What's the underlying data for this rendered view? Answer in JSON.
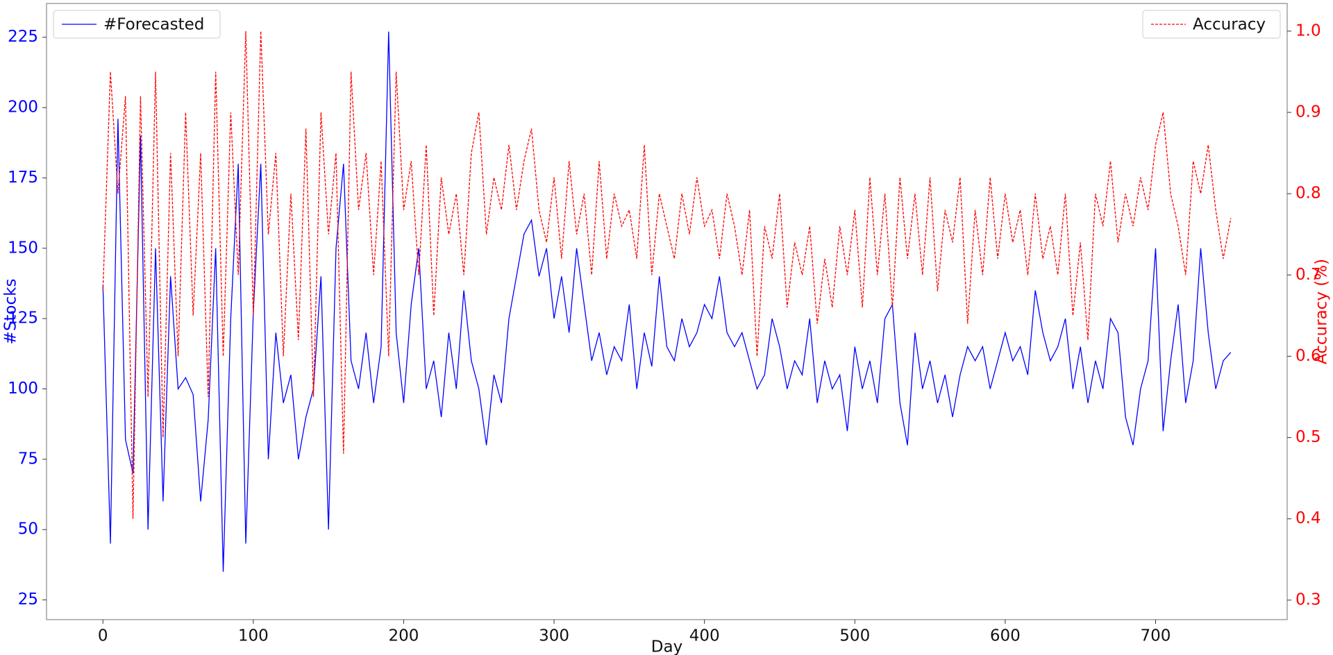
{
  "chart_data": {
    "type": "line",
    "xlabel": "Day",
    "ylabel": "#Stocks",
    "y2label": "Accuracy (%)",
    "x": [
      0,
      5,
      10,
      15,
      20,
      25,
      30,
      35,
      40,
      45,
      50,
      55,
      60,
      65,
      70,
      75,
      80,
      85,
      90,
      95,
      100,
      105,
      110,
      115,
      120,
      125,
      130,
      135,
      140,
      145,
      150,
      155,
      160,
      165,
      170,
      175,
      180,
      185,
      190,
      195,
      200,
      205,
      210,
      215,
      220,
      225,
      230,
      235,
      240,
      245,
      250,
      255,
      260,
      265,
      270,
      275,
      280,
      285,
      290,
      295,
      300,
      305,
      310,
      315,
      320,
      325,
      330,
      335,
      340,
      345,
      350,
      355,
      360,
      365,
      370,
      375,
      380,
      385,
      390,
      395,
      400,
      405,
      410,
      415,
      420,
      425,
      430,
      435,
      440,
      445,
      450,
      455,
      460,
      465,
      470,
      475,
      480,
      485,
      490,
      495,
      500,
      505,
      510,
      515,
      520,
      525,
      530,
      535,
      540,
      545,
      550,
      555,
      560,
      565,
      570,
      575,
      580,
      585,
      590,
      595,
      600,
      605,
      610,
      615,
      620,
      625,
      630,
      635,
      640,
      645,
      650,
      655,
      660,
      665,
      670,
      675,
      680,
      685,
      690,
      695,
      700,
      705,
      710,
      715,
      720,
      725,
      730,
      735,
      740,
      745,
      750
    ],
    "series": [
      {
        "name": "#Forecasted",
        "color": "#0000ff",
        "linestyle": "solid",
        "axis": "y",
        "legend_loc": "upper left",
        "values": [
          137,
          45,
          196,
          82,
          70,
          190,
          50,
          150,
          60,
          140,
          100,
          104,
          98,
          60,
          89,
          150,
          35,
          125,
          180,
          45,
          127,
          180,
          75,
          120,
          95,
          105,
          75,
          90,
          100,
          140,
          50,
          150,
          180,
          110,
          100,
          120,
          95,
          115,
          227,
          120,
          95,
          130,
          150,
          100,
          110,
          90,
          120,
          100,
          135,
          110,
          100,
          80,
          105,
          95,
          125,
          140,
          155,
          160,
          140,
          150,
          125,
          140,
          120,
          150,
          130,
          110,
          120,
          105,
          115,
          110,
          130,
          100,
          120,
          108,
          140,
          115,
          110,
          125,
          115,
          120,
          130,
          125,
          140,
          120,
          115,
          120,
          110,
          100,
          105,
          125,
          115,
          100,
          110,
          105,
          125,
          95,
          110,
          100,
          105,
          85,
          115,
          100,
          110,
          95,
          125,
          130,
          95,
          80,
          120,
          100,
          110,
          95,
          105,
          90,
          105,
          115,
          110,
          115,
          100,
          110,
          120,
          110,
          115,
          105,
          135,
          120,
          110,
          115,
          125,
          100,
          115,
          95,
          110,
          100,
          125,
          120,
          90,
          80,
          100,
          110,
          150,
          85,
          110,
          130,
          95,
          110,
          150,
          120,
          100,
          110,
          113
        ]
      },
      {
        "name": "Accuracy",
        "color": "#ff0000",
        "linestyle": "dashed",
        "axis": "y2",
        "legend_loc": "upper right",
        "values": [
          0.68,
          0.95,
          0.8,
          0.92,
          0.4,
          0.92,
          0.55,
          0.95,
          0.5,
          0.85,
          0.6,
          0.9,
          0.65,
          0.85,
          0.55,
          0.95,
          0.6,
          0.9,
          0.7,
          1.0,
          0.65,
          1.0,
          0.75,
          0.85,
          0.6,
          0.8,
          0.62,
          0.88,
          0.55,
          0.9,
          0.75,
          0.85,
          0.48,
          0.95,
          0.78,
          0.85,
          0.7,
          0.84,
          0.6,
          0.95,
          0.78,
          0.84,
          0.7,
          0.86,
          0.65,
          0.82,
          0.75,
          0.8,
          0.7,
          0.85,
          0.9,
          0.75,
          0.82,
          0.78,
          0.86,
          0.78,
          0.84,
          0.88,
          0.78,
          0.74,
          0.82,
          0.72,
          0.84,
          0.75,
          0.8,
          0.7,
          0.84,
          0.72,
          0.8,
          0.76,
          0.78,
          0.72,
          0.86,
          0.7,
          0.8,
          0.76,
          0.72,
          0.8,
          0.75,
          0.82,
          0.76,
          0.78,
          0.72,
          0.8,
          0.76,
          0.7,
          0.78,
          0.6,
          0.76,
          0.72,
          0.8,
          0.66,
          0.74,
          0.7,
          0.76,
          0.64,
          0.72,
          0.66,
          0.76,
          0.7,
          0.78,
          0.66,
          0.82,
          0.7,
          0.8,
          0.66,
          0.82,
          0.72,
          0.8,
          0.7,
          0.82,
          0.68,
          0.78,
          0.74,
          0.82,
          0.64,
          0.78,
          0.7,
          0.82,
          0.72,
          0.8,
          0.74,
          0.78,
          0.7,
          0.8,
          0.72,
          0.76,
          0.7,
          0.8,
          0.65,
          0.74,
          0.62,
          0.8,
          0.76,
          0.84,
          0.74,
          0.8,
          0.76,
          0.82,
          0.78,
          0.86,
          0.9,
          0.8,
          0.76,
          0.7,
          0.84,
          0.8,
          0.86,
          0.78,
          0.72,
          0.77
        ]
      }
    ],
    "xlim": [
      -37.5,
      787.5
    ],
    "xticks": [
      0,
      100,
      200,
      300,
      400,
      500,
      600,
      700
    ],
    "ylim": [
      18,
      237
    ],
    "yticks": [
      25,
      50,
      75,
      100,
      125,
      150,
      175,
      200,
      225
    ],
    "y2lim": [
      0.276,
      1.034
    ],
    "y2ticks": [
      0.3,
      0.4,
      0.5,
      0.6,
      0.7,
      0.8,
      0.9,
      {
        "value": 1,
        "label": "1.0"
      }
    ]
  }
}
